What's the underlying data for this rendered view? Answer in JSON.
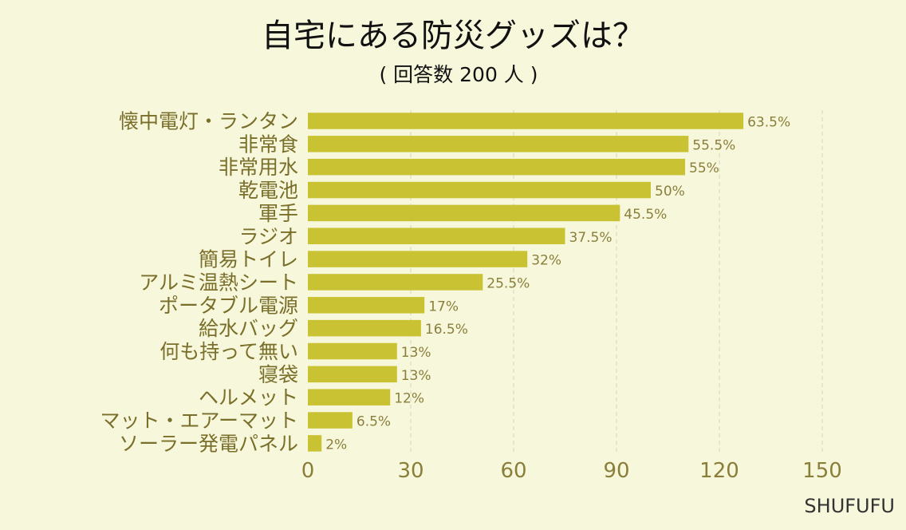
{
  "chart_data": {
    "type": "bar",
    "orientation": "horizontal",
    "title": "自宅にある防災グッズは？",
    "subtitle": "( 回答数 200 人 )",
    "categories": [
      "懐中電灯・ランタン",
      "非常食",
      "非常用水",
      "乾電池",
      "軍手",
      "ラジオ",
      "簡易トイレ",
      "アルミ温熱シート",
      "ポータブル電源",
      "給水バッグ",
      "何も持って無い",
      "寝袋",
      "ヘルメット",
      "マット・エアーマット",
      "ソーラー発電パネル"
    ],
    "values": [
      127,
      111,
      110,
      100,
      91,
      75,
      64,
      51,
      34,
      33,
      26,
      26,
      24,
      13,
      4
    ],
    "value_labels": [
      "63.5%",
      "55.5%",
      "55%",
      "50%",
      "45.5%",
      "37.5%",
      "32%",
      "25.5%",
      "17%",
      "16.5%",
      "13%",
      "13%",
      "12%",
      "6.5%",
      "2%"
    ],
    "xlim": [
      0,
      150
    ],
    "x_ticks": [
      "0",
      "30",
      "60",
      "90",
      "120",
      "150"
    ],
    "x_tick_values": [
      0,
      30,
      60,
      90,
      120,
      150
    ],
    "grid": true,
    "bar_color": "#c9c232"
  },
  "brand": "SHUFUFU"
}
